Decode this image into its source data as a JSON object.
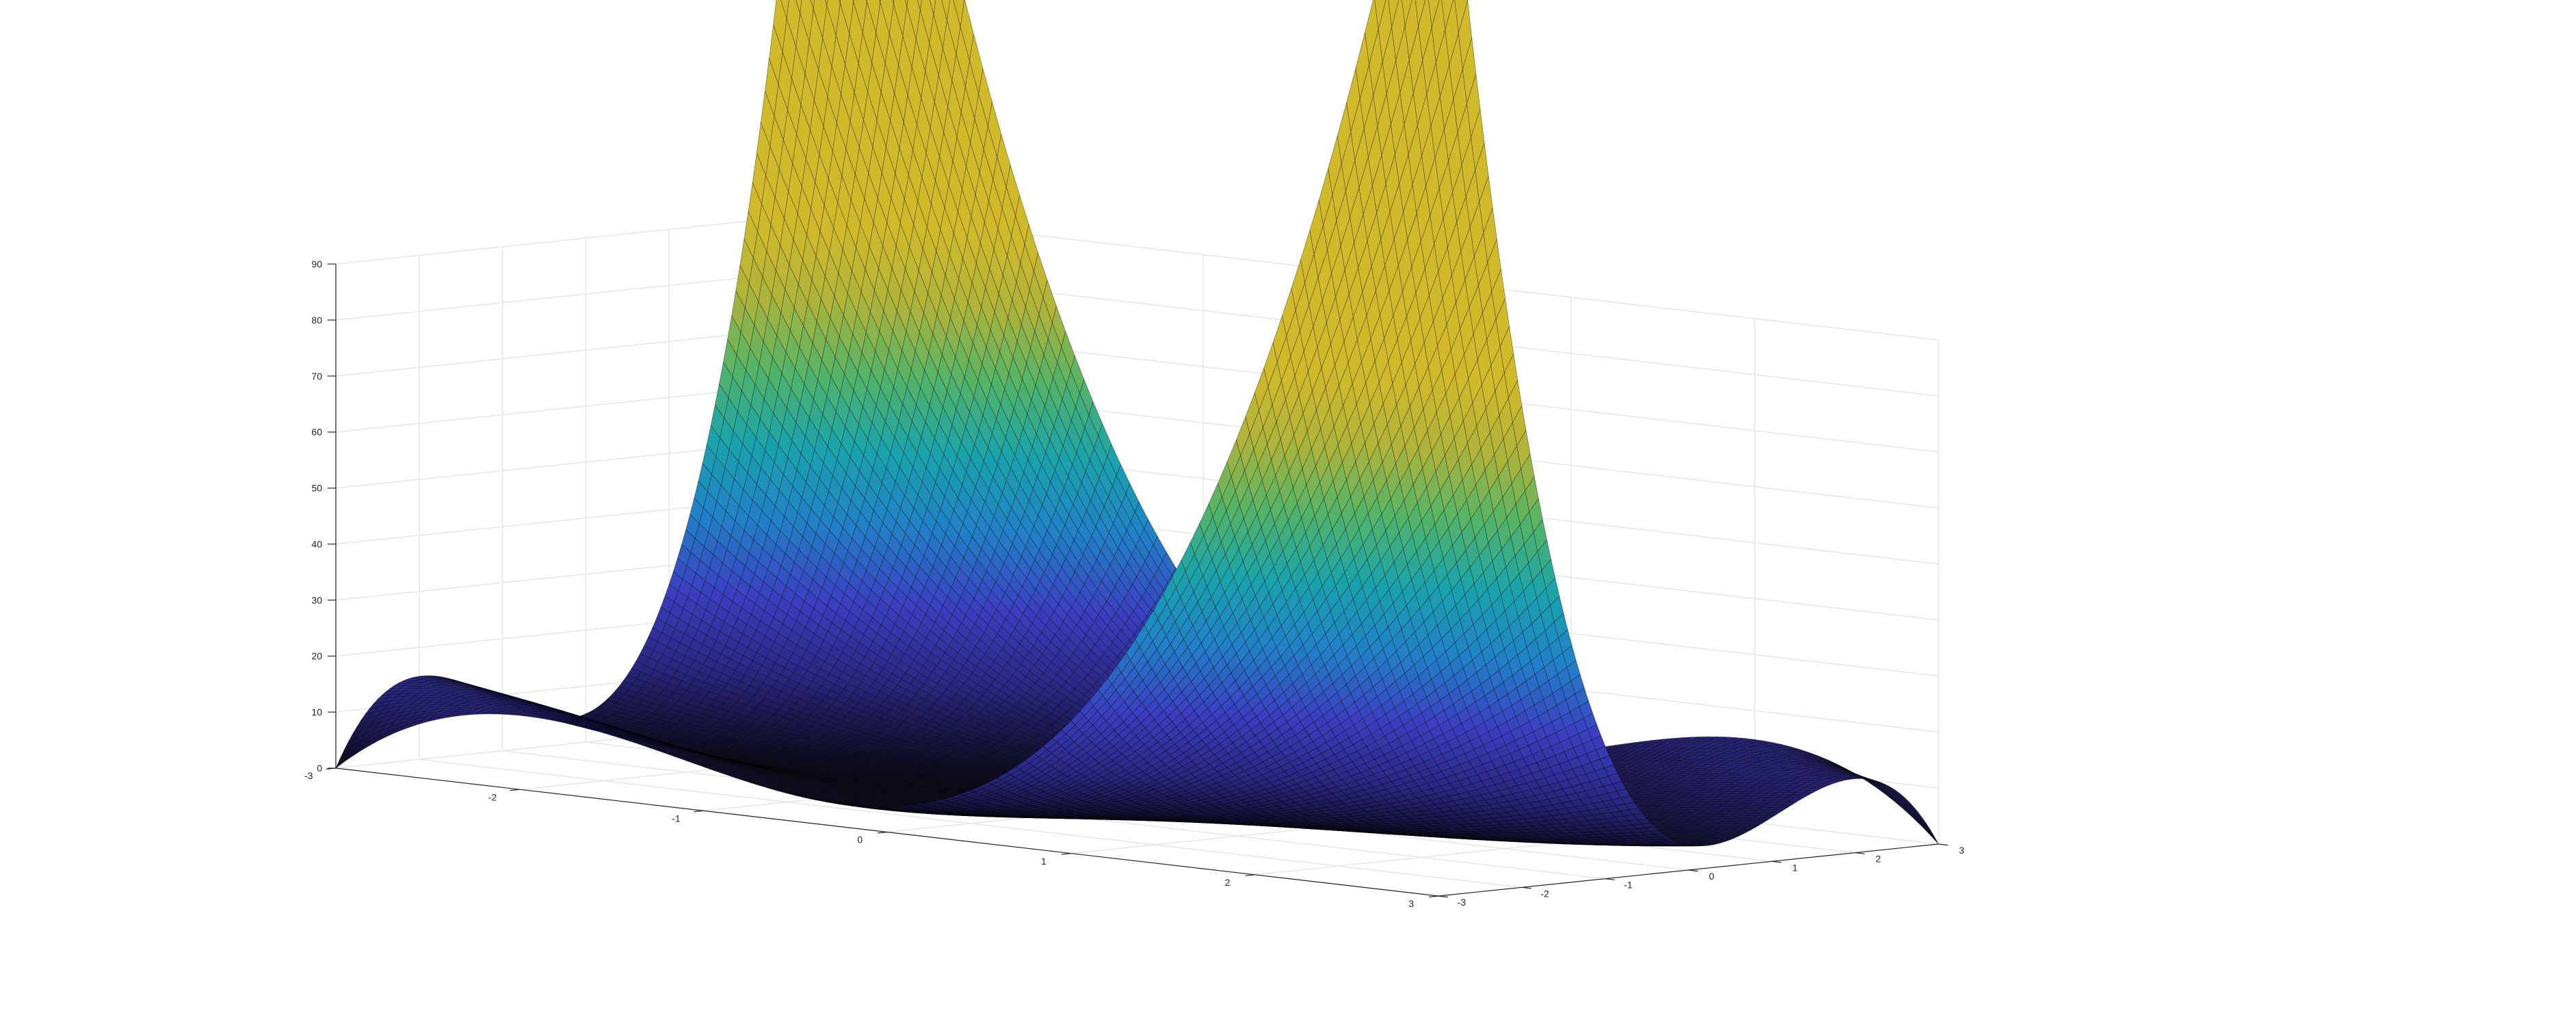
{
  "chart_data": {
    "type": "surface",
    "title": "",
    "xlabel": "",
    "ylabel": "",
    "zlabel": "",
    "x_range": [
      -3,
      3
    ],
    "y_range": [
      -3,
      3
    ],
    "z_range": [
      0,
      90
    ],
    "x_ticks": [
      "-3",
      "-2",
      "-1",
      "0",
      "1",
      "2",
      "3"
    ],
    "y_ticks": [
      "-3",
      "-2",
      "-1",
      "0",
      "1",
      "2",
      "3"
    ],
    "z_ticks": [
      "0",
      "10",
      "20",
      "30",
      "40",
      "50",
      "60",
      "70",
      "80",
      "90"
    ],
    "grid": true,
    "colormap": "parula-dark",
    "colormap_stops": [
      "#0b0a1a",
      "#2a2680",
      "#3b3fc0",
      "#2280c8",
      "#19a3ad",
      "#53b468",
      "#b0b43a",
      "#d1ba2a"
    ],
    "grid_size": 121,
    "surface_corner_values": [
      {
        "x": -3,
        "y": -3,
        "z": 0
      },
      {
        "x": 3,
        "y": -3,
        "z": 80
      },
      {
        "x": -3,
        "y": 3,
        "z": 90
      },
      {
        "x": 3,
        "y": 3,
        "z": 0
      }
    ],
    "surface_center_value": {
      "x": 0,
      "y": 0,
      "z": 0
    }
  }
}
